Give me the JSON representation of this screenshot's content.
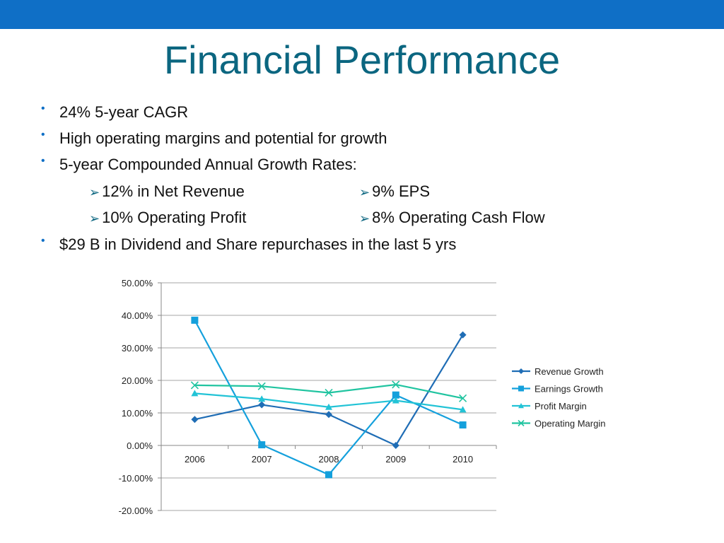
{
  "slide": {
    "title": "Financial Performance",
    "bullets": [
      "24% 5-year CAGR",
      "High operating margins and potential for growth",
      "5-year Compounded Annual Growth Rates:",
      "$29 B in Dividend and Share repurchases in the last 5 yrs"
    ],
    "sub_bullets": [
      "12% in Net Revenue",
      "9% EPS",
      "10% Operating Profit",
      "8% Operating Cash Flow"
    ],
    "bullet_color": "#0f6fc6",
    "title_color": "#0b6680"
  },
  "chart_data": {
    "type": "line",
    "categories": [
      "2006",
      "2007",
      "2008",
      "2009",
      "2010"
    ],
    "y_ticks": [
      "50.00%",
      "40.00%",
      "30.00%",
      "20.00%",
      "10.00%",
      "0.00%",
      "-10.00%",
      "-20.00%"
    ],
    "ylim": [
      -20,
      50
    ],
    "grid": true,
    "legend_position": "right",
    "series": [
      {
        "name": "Revenue Growth",
        "values": [
          8,
          12.5,
          9.5,
          0,
          34
        ],
        "color": "#1f6db5",
        "marker": "diamond"
      },
      {
        "name": "Earnings Growth",
        "values": [
          38.5,
          0.2,
          -9,
          15.5,
          6.3
        ],
        "color": "#14a0dc",
        "marker": "square"
      },
      {
        "name": "Profit Margin",
        "values": [
          16,
          14.3,
          11.8,
          13.8,
          11
        ],
        "color": "#22c3d6",
        "marker": "triangle"
      },
      {
        "name": "Operating Margin",
        "values": [
          18.5,
          18.2,
          16.2,
          18.7,
          14.5
        ],
        "color": "#20c4a0",
        "marker": "x"
      }
    ]
  }
}
